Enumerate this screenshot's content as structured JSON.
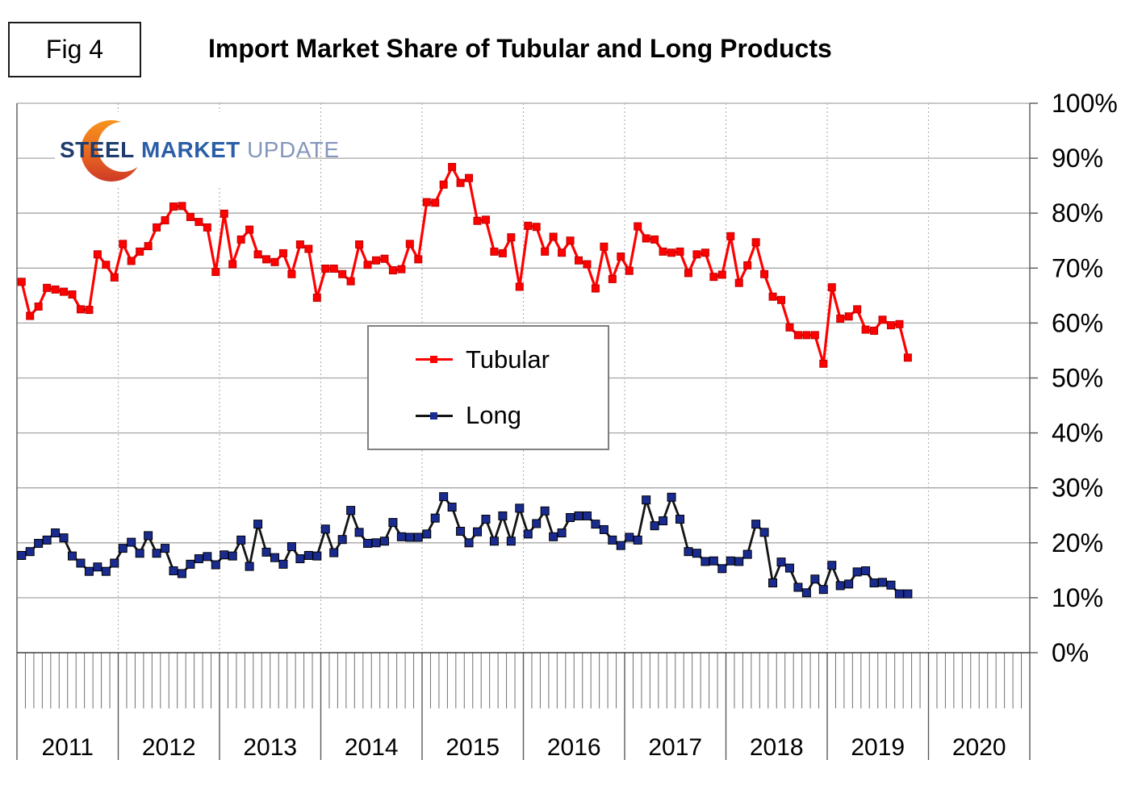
{
  "figure": {
    "fig_label": "Fig 4",
    "title": "Import Market Share of Tubular and Long Products"
  },
  "logo": {
    "word1": "STEEL",
    "word2": "MARKET",
    "word3": "UPDATE",
    "crescent_color_top": "#F7941E",
    "crescent_color_bottom": "#CE3A26"
  },
  "legend": [
    {
      "label": "Tubular",
      "line_color": "#FF0000",
      "marker_color": "#FF0000"
    },
    {
      "label": "Long",
      "line_color": "#141414",
      "marker_color": "#1A2B8F"
    }
  ],
  "y_axis": {
    "tick_labels": [
      "100%",
      "90%",
      "80%",
      "70%",
      "60%",
      "50%",
      "40%",
      "30%",
      "20%",
      "10%",
      "0%"
    ]
  },
  "x_axis": {
    "year_labels": [
      "2011",
      "2012",
      "2013",
      "2014",
      "2015",
      "2016",
      "2017",
      "2018",
      "2019",
      "2020"
    ]
  },
  "chart_data": {
    "type": "line",
    "title": "Import Market Share of Tubular and Long Products",
    "xlabel": "",
    "ylabel": "",
    "unit": "%",
    "ylim": [
      0,
      100
    ],
    "grid": true,
    "legend_position": "center",
    "x_freq": "monthly",
    "x": [
      "2011-01",
      "2011-02",
      "2011-03",
      "2011-04",
      "2011-05",
      "2011-06",
      "2011-07",
      "2011-08",
      "2011-09",
      "2011-10",
      "2011-11",
      "2011-12",
      "2012-01",
      "2012-02",
      "2012-03",
      "2012-04",
      "2012-05",
      "2012-06",
      "2012-07",
      "2012-08",
      "2012-09",
      "2012-10",
      "2012-11",
      "2012-12",
      "2013-01",
      "2013-02",
      "2013-03",
      "2013-04",
      "2013-05",
      "2013-06",
      "2013-07",
      "2013-08",
      "2013-09",
      "2013-10",
      "2013-11",
      "2013-12",
      "2014-01",
      "2014-02",
      "2014-03",
      "2014-04",
      "2014-05",
      "2014-06",
      "2014-07",
      "2014-08",
      "2014-09",
      "2014-10",
      "2014-11",
      "2014-12",
      "2015-01",
      "2015-02",
      "2015-03",
      "2015-04",
      "2015-05",
      "2015-06",
      "2015-07",
      "2015-08",
      "2015-09",
      "2015-10",
      "2015-11",
      "2015-12",
      "2016-01",
      "2016-02",
      "2016-03",
      "2016-04",
      "2016-05",
      "2016-06",
      "2016-07",
      "2016-08",
      "2016-09",
      "2016-10",
      "2016-11",
      "2016-12",
      "2017-01",
      "2017-02",
      "2017-03",
      "2017-04",
      "2017-05",
      "2017-06",
      "2017-07",
      "2017-08",
      "2017-09",
      "2017-10",
      "2017-11",
      "2017-12",
      "2018-01",
      "2018-02",
      "2018-03",
      "2018-04",
      "2018-05",
      "2018-06",
      "2018-07",
      "2018-08",
      "2018-09",
      "2018-10",
      "2018-11",
      "2018-12",
      "2019-01",
      "2019-02",
      "2019-03",
      "2019-04",
      "2019-05",
      "2019-06",
      "2019-07",
      "2019-08",
      "2019-09",
      "2019-10"
    ],
    "series": [
      {
        "name": "Tubular",
        "color": "#FF0000",
        "values": [
          67.5,
          61.3,
          63,
          66.4,
          66.1,
          65.7,
          65.2,
          62.5,
          62.4,
          72.5,
          70.6,
          68.3,
          74.4,
          71.3,
          73,
          74,
          77.4,
          78.7,
          81.2,
          81.3,
          79.3,
          78.4,
          77.4,
          69.3,
          79.9,
          70.7,
          75.2,
          77,
          72.5,
          71.6,
          71.1,
          72.7,
          68.9,
          74.3,
          73.5,
          64.6,
          69.9,
          69.9,
          68.9,
          67.6,
          74.3,
          70.6,
          71.4,
          71.7,
          69.6,
          69.8,
          74.4,
          71.6,
          82,
          81.9,
          85.2,
          88.4,
          85.5,
          86.4,
          78.6,
          78.8,
          73,
          72.7,
          75.6,
          66.6,
          77.7,
          77.5,
          73,
          75.7,
          72.8,
          75,
          71.4,
          70.7,
          66.3,
          73.9,
          68,
          72.1,
          69.5,
          77.6,
          75.4,
          75.2,
          73,
          72.8,
          73,
          69.1,
          72.5,
          72.8,
          68.4,
          68.8,
          75.8,
          67.3,
          70.5,
          74.7,
          68.9,
          64.8,
          64.2,
          59.2,
          57.8,
          57.8,
          57.8,
          52.6,
          66.5,
          60.8,
          61.2,
          62.5,
          58.8,
          58.6,
          60.6,
          59.6,
          59.8,
          53.7
        ]
      },
      {
        "name": "Long",
        "color": "#1A2B8F",
        "values": [
          17.7,
          18.4,
          19.9,
          20.5,
          21.8,
          20.9,
          17.6,
          16.3,
          14.8,
          15.6,
          14.8,
          16.3,
          19,
          20.1,
          18.1,
          21.3,
          18.1,
          19,
          14.9,
          14.4,
          16.1,
          17.1,
          17.5,
          16,
          17.8,
          17.6,
          20.5,
          15.7,
          23.4,
          18.3,
          17.3,
          16.1,
          19.3,
          17.1,
          17.7,
          17.6,
          22.5,
          18.2,
          20.6,
          25.9,
          21.9,
          19.9,
          20,
          20.3,
          23.7,
          21.1,
          21,
          21,
          21.6,
          24.5,
          28.4,
          26.5,
          22.1,
          20,
          22,
          24.3,
          20.3,
          24.9,
          20.3,
          26.3,
          21.6,
          23.5,
          25.8,
          21.1,
          21.8,
          24.6,
          24.9,
          24.9,
          23.4,
          22.4,
          20.5,
          19.5,
          21,
          20.5,
          27.8,
          23.1,
          24,
          28.3,
          24.3,
          18.4,
          18.1,
          16.6,
          16.7,
          15.3,
          16.7,
          16.6,
          17.9,
          23.4,
          21.9,
          12.7,
          16.5,
          15.4,
          11.9,
          10.9,
          13.4,
          11.5,
          15.9,
          12.2,
          12.5,
          14.7,
          14.9,
          12.7,
          12.8,
          12.3,
          10.7,
          10.7
        ]
      }
    ]
  }
}
